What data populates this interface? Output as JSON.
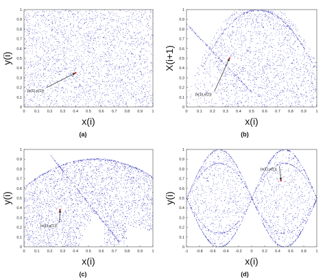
{
  "chart_data": [
    {
      "id": "a",
      "type": "scatter",
      "panel_label": "(a)",
      "xlabel": "x(i)",
      "ylabel": "y(i)",
      "xlim": [
        0,
        1
      ],
      "ylim": [
        0,
        1
      ],
      "xticks": [
        "0",
        "0.1",
        "0.2",
        "0.3",
        "0.4",
        "0.5",
        "0.6",
        "0.7",
        "0.8",
        "0.9",
        "1"
      ],
      "yticks": [
        "0",
        "0.1",
        "0.2",
        "0.3",
        "0.4",
        "0.5",
        "0.6",
        "0.7",
        "0.8",
        "0.9",
        "1"
      ],
      "distribution": "uniform",
      "point_color": "#2a2ab8",
      "annotation": {
        "text": "(x(1),y(1))",
        "point": [
          0.4,
          0.35
        ],
        "text_pos": [
          0.1,
          0.17
        ]
      }
    },
    {
      "id": "b",
      "type": "scatter",
      "panel_label": "(b)",
      "xlabel": "x(i)",
      "ylabel": "X(i+1)",
      "xlim": [
        0,
        1
      ],
      "ylim": [
        0,
        1
      ],
      "xticks": [
        "0",
        "0.1",
        "0.2",
        "0.3",
        "0.4",
        "0.5",
        "0.6",
        "0.7",
        "0.8",
        "0.9",
        "1"
      ],
      "yticks": [
        "0",
        "0.1",
        "0.2",
        "0.3",
        "0.4",
        "0.5",
        "0.6",
        "0.7",
        "0.8",
        "0.9",
        "1"
      ],
      "distribution": "return-map",
      "point_color": "#2a2ab8",
      "annotation": {
        "text": "(x(1),x(2))",
        "point": [
          0.33,
          0.5
        ],
        "text_pos": [
          0.14,
          0.13
        ]
      }
    },
    {
      "id": "c",
      "type": "scatter",
      "panel_label": "(c)",
      "xlabel": "x(i)",
      "ylabel": "y(i)",
      "xlim": [
        0,
        1
      ],
      "ylim": [
        0,
        1
      ],
      "xticks": [
        "0",
        "0.1",
        "0.2",
        "0.3",
        "0.4",
        "0.5",
        "0.6",
        "0.7",
        "0.8",
        "0.9",
        "1"
      ],
      "yticks": [
        "0",
        "0.1",
        "0.2",
        "0.3",
        "0.4",
        "0.5",
        "0.6",
        "0.7",
        "0.8",
        "0.9",
        "1"
      ],
      "distribution": "fan-attractor",
      "point_color": "#2a2ab8",
      "annotation": {
        "text": "(x(1),y(1))",
        "point": [
          0.28,
          0.38
        ],
        "text_pos": [
          0.2,
          0.22
        ]
      }
    },
    {
      "id": "d",
      "type": "scatter",
      "panel_label": "(d)",
      "xlabel": "x(i)",
      "ylabel": "y(i)",
      "xlim": [
        -1,
        1
      ],
      "ylim": [
        0,
        1
      ],
      "xticks": [
        "-1",
        "-0.8",
        "-0.6",
        "-0.4",
        "-0.2",
        "0",
        "0.2",
        "0.4",
        "0.6",
        "0.8",
        "1"
      ],
      "yticks": [
        "0",
        "0.1",
        "0.2",
        "0.3",
        "0.4",
        "0.5",
        "0.6",
        "0.7",
        "0.8",
        "0.9",
        "1"
      ],
      "distribution": "double-lens",
      "point_color": "#2a2ab8",
      "annotation": {
        "text": "(x(1),y(1))",
        "point": [
          0.45,
          0.68
        ],
        "text_pos": [
          0.28,
          0.8
        ]
      }
    }
  ]
}
